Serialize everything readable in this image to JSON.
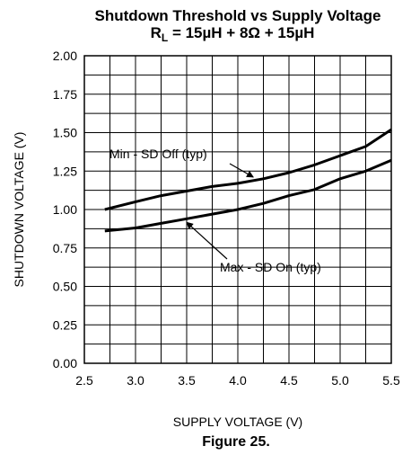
{
  "chart_data": {
    "type": "line",
    "title": "Shutdown Threshold vs Supply Voltage",
    "subtitle": {
      "rl_symbol": "R",
      "rl_subscript": "L",
      "rest": " = 15µH + 8Ω + 15µH"
    },
    "xlabel": "SUPPLY VOLTAGE (V)",
    "ylabel": "SHUTDOWN VOLTAGE (V)",
    "xlim": [
      2.5,
      5.5
    ],
    "ylim": [
      0.0,
      2.0
    ],
    "x_ticks": [
      "2.5",
      "3.0",
      "3.5",
      "4.0",
      "4.5",
      "5.0",
      "5.5"
    ],
    "y_ticks": [
      "0.00",
      "0.25",
      "0.50",
      "0.75",
      "1.00",
      "1.25",
      "1.50",
      "1.75",
      "2.00"
    ],
    "grid": true,
    "series": [
      {
        "name": "Min - SD Off (typ)",
        "x": [
          2.7,
          3.0,
          3.25,
          3.5,
          3.75,
          4.0,
          4.25,
          4.5,
          4.75,
          5.0,
          5.25,
          5.5
        ],
        "y": [
          1.0,
          1.05,
          1.09,
          1.12,
          1.15,
          1.17,
          1.2,
          1.24,
          1.29,
          1.35,
          1.41,
          1.52
        ]
      },
      {
        "name": "Max - SD On (typ)",
        "x": [
          2.7,
          3.0,
          3.25,
          3.5,
          3.75,
          4.0,
          4.25,
          4.5,
          4.75,
          5.0,
          5.25,
          5.5
        ],
        "y": [
          0.86,
          0.88,
          0.91,
          0.94,
          0.97,
          1.0,
          1.04,
          1.09,
          1.13,
          1.2,
          1.25,
          1.32
        ]
      }
    ],
    "annotations": [
      {
        "text": "Min - SD Off (typ)",
        "series": 0,
        "target_x": 4.15
      },
      {
        "text": "Max - SD On (typ)",
        "series": 1,
        "target_x": 3.5
      }
    ]
  },
  "figure_caption": "Figure 25."
}
